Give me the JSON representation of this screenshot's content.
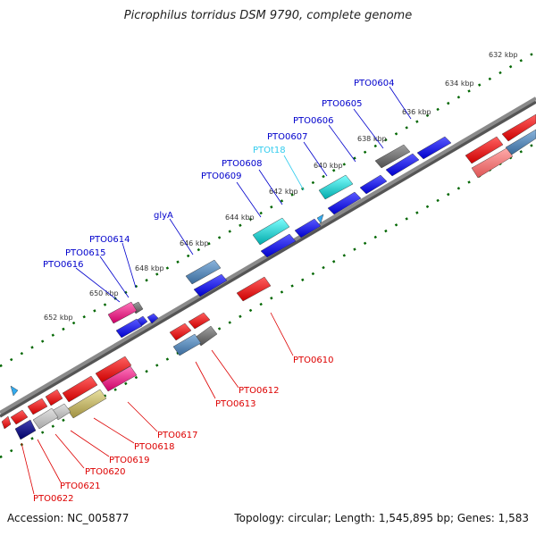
{
  "title": "Picrophilus torridus DSM 9790, complete genome",
  "footer": {
    "accession": "Accession: NC_005877",
    "info": "Topology: circular; Length: 1,545,895 bp; Genes: 1,583"
  },
  "kbp_labels": [
    "632 kbp",
    "634 kbp",
    "636 kbp",
    "638 kbp",
    "640 kbp",
    "642 kbp",
    "644 kbp",
    "646 kbp",
    "648 kbp",
    "650 kbp",
    "652 kbp"
  ],
  "forward_labels": [
    "PTO0604",
    "PTO0605",
    "PTO0606",
    "PTO0607",
    "PTOt18",
    "PTO0608",
    "PTO0609",
    "glyA",
    "PTO0614",
    "PTO0615",
    "PTO0616"
  ],
  "reverse_labels": [
    "PTO0610",
    "PTO0612",
    "PTO0613",
    "PTO0617",
    "PTO0618",
    "PTO0619",
    "PTO0620",
    "PTO0621",
    "PTO0622"
  ],
  "colors": {
    "label_blue": "#0000cc",
    "label_cyan": "#33ccee",
    "label_red": "#dd0000",
    "gene_blue": "#0000ee",
    "gene_red": "#ee0000",
    "gene_cyan": "#00cccc",
    "gene_steel": "#4a7fb0",
    "gene_gray": "#707070",
    "gene_pink": "#ee1188",
    "gene_olive": "#bbb055",
    "gene_navy": "#000080",
    "gene_salmon": "#ee7777",
    "backbone": "#808080",
    "tick_green": "#006600"
  }
}
